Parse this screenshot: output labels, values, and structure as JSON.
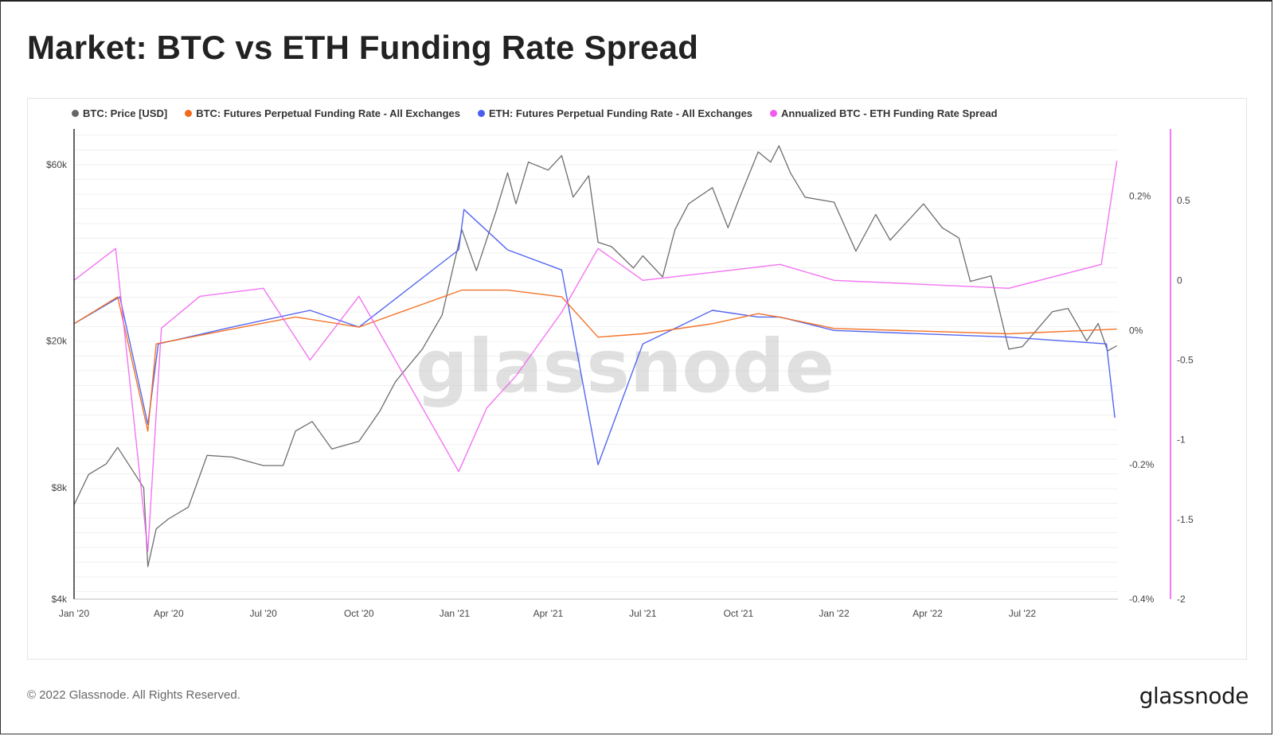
{
  "title": "Market: BTC vs ETH Funding Rate Spread",
  "footer": {
    "copyright": "© 2022 Glassnode. All Rights Reserved.",
    "logo": "glassnode"
  },
  "watermark": "glassnode",
  "legend": [
    {
      "label": "BTC: Price [USD]",
      "color": "#666666"
    },
    {
      "label": "BTC: Futures Perpetual Funding Rate - All Exchanges",
      "color": "#f26b1d"
    },
    {
      "label": "ETH: Futures Perpetual Funding Rate - All Exchanges",
      "color": "#4a5ff0"
    },
    {
      "label": "Annualized BTC - ETH Funding Rate Spread",
      "color": "#f15cf0"
    }
  ],
  "chart_data": {
    "type": "line",
    "x_axis": {
      "type": "time",
      "range": [
        "2020-01-01",
        "2022-10-01"
      ],
      "ticks": [
        {
          "date": "2020-01-01",
          "label": "Jan '20"
        },
        {
          "date": "2020-04-01",
          "label": "Apr '20"
        },
        {
          "date": "2020-07-01",
          "label": "Jul '20"
        },
        {
          "date": "2020-10-01",
          "label": "Oct '20"
        },
        {
          "date": "2021-01-01",
          "label": "Jan '21"
        },
        {
          "date": "2021-04-01",
          "label": "Apr '21"
        },
        {
          "date": "2021-07-01",
          "label": "Jul '21"
        },
        {
          "date": "2021-10-01",
          "label": "Oct '21"
        },
        {
          "date": "2022-01-01",
          "label": "Jan '22"
        },
        {
          "date": "2022-04-01",
          "label": "Apr '22"
        },
        {
          "date": "2022-07-01",
          "label": "Jul '22"
        }
      ]
    },
    "y_left": {
      "scale": "log",
      "range": [
        4000,
        75000
      ],
      "ticks": [
        {
          "value": 4000,
          "label": "$4k"
        },
        {
          "value": 8000,
          "label": "$8k"
        },
        {
          "value": 20000,
          "label": "$20k"
        },
        {
          "value": 60000,
          "label": "$60k"
        }
      ]
    },
    "y_right1": {
      "scale": "linear",
      "unit": "%",
      "range": [
        -0.4,
        0.3
      ],
      "ticks": [
        {
          "value": 0.2,
          "label": "0.2%"
        },
        {
          "value": 0,
          "label": "0%"
        },
        {
          "value": -0.2,
          "label": "-0.2%"
        },
        {
          "value": -0.4,
          "label": "-0.4%"
        }
      ]
    },
    "y_right2": {
      "scale": "linear",
      "range": [
        -2,
        0.95
      ],
      "ticks": [
        {
          "value": 0.5,
          "label": "0.5"
        },
        {
          "value": 0,
          "label": "0"
        },
        {
          "value": -0.5,
          "label": "-0.5"
        },
        {
          "value": -1,
          "label": "-1"
        },
        {
          "value": -1.5,
          "label": "-1.5"
        },
        {
          "value": -2,
          "label": "-2"
        }
      ]
    },
    "series": [
      {
        "name": "BTC: Price [USD]",
        "axis": "y_left",
        "color": "#666666",
        "points": [
          [
            "2020-01-01",
            7200
          ],
          [
            "2020-01-15",
            8700
          ],
          [
            "2020-02-01",
            9300
          ],
          [
            "2020-02-12",
            10300
          ],
          [
            "2020-03-01",
            8600
          ],
          [
            "2020-03-08",
            8000
          ],
          [
            "2020-03-12",
            4900
          ],
          [
            "2020-03-20",
            6200
          ],
          [
            "2020-04-01",
            6600
          ],
          [
            "2020-04-20",
            7100
          ],
          [
            "2020-05-08",
            9800
          ],
          [
            "2020-06-01",
            9700
          ],
          [
            "2020-07-01",
            9200
          ],
          [
            "2020-07-20",
            9200
          ],
          [
            "2020-08-01",
            11400
          ],
          [
            "2020-08-17",
            12100
          ],
          [
            "2020-09-05",
            10200
          ],
          [
            "2020-10-01",
            10700
          ],
          [
            "2020-10-21",
            12900
          ],
          [
            "2020-11-05",
            15500
          ],
          [
            "2020-12-01",
            19000
          ],
          [
            "2020-12-20",
            23500
          ],
          [
            "2021-01-08",
            40000
          ],
          [
            "2021-01-22",
            31000
          ],
          [
            "2021-02-10",
            45000
          ],
          [
            "2021-02-21",
            57000
          ],
          [
            "2021-03-01",
            47000
          ],
          [
            "2021-03-13",
            61000
          ],
          [
            "2021-04-01",
            58000
          ],
          [
            "2021-04-14",
            63500
          ],
          [
            "2021-04-25",
            49000
          ],
          [
            "2021-05-10",
            56000
          ],
          [
            "2021-05-19",
            37000
          ],
          [
            "2021-06-01",
            36000
          ],
          [
            "2021-06-22",
            31500
          ],
          [
            "2021-07-01",
            34000
          ],
          [
            "2021-07-20",
            29800
          ],
          [
            "2021-08-01",
            40000
          ],
          [
            "2021-08-14",
            47000
          ],
          [
            "2021-09-06",
            52000
          ],
          [
            "2021-09-21",
            40500
          ],
          [
            "2021-10-01",
            48000
          ],
          [
            "2021-10-20",
            65000
          ],
          [
            "2021-11-01",
            61000
          ],
          [
            "2021-11-09",
            67500
          ],
          [
            "2021-11-20",
            57000
          ],
          [
            "2021-12-04",
            49000
          ],
          [
            "2022-01-01",
            47500
          ],
          [
            "2022-01-22",
            35000
          ],
          [
            "2022-02-10",
            44000
          ],
          [
            "2022-02-24",
            37500
          ],
          [
            "2022-03-28",
            47000
          ],
          [
            "2022-04-15",
            40500
          ],
          [
            "2022-05-01",
            38000
          ],
          [
            "2022-05-12",
            29000
          ],
          [
            "2022-06-01",
            30000
          ],
          [
            "2022-06-18",
            19000
          ],
          [
            "2022-07-01",
            19300
          ],
          [
            "2022-07-30",
            24000
          ],
          [
            "2022-08-14",
            24500
          ],
          [
            "2022-09-01",
            20000
          ],
          [
            "2022-09-12",
            22300
          ],
          [
            "2022-09-21",
            18800
          ],
          [
            "2022-09-30",
            19400
          ]
        ]
      },
      {
        "name": "BTC: Futures Perpetual Funding Rate - All Exchanges",
        "axis": "y_right1",
        "color": "#f26b1d",
        "points": [
          [
            "2020-01-01",
            0.01
          ],
          [
            "2020-02-12",
            0.05
          ],
          [
            "2020-03-12",
            -0.15
          ],
          [
            "2020-03-20",
            -0.02
          ],
          [
            "2020-06-01",
            0.002
          ],
          [
            "2020-08-01",
            0.02
          ],
          [
            "2020-10-01",
            0.005
          ],
          [
            "2021-01-08",
            0.06
          ],
          [
            "2021-02-21",
            0.06
          ],
          [
            "2021-04-14",
            0.05
          ],
          [
            "2021-05-19",
            -0.01
          ],
          [
            "2021-07-01",
            -0.005
          ],
          [
            "2021-09-06",
            0.01
          ],
          [
            "2021-10-20",
            0.025
          ],
          [
            "2021-11-09",
            0.02
          ],
          [
            "2022-01-01",
            0.003
          ],
          [
            "2022-06-18",
            -0.005
          ],
          [
            "2022-09-30",
            0.002
          ]
        ]
      },
      {
        "name": "ETH: Futures Perpetual Funding Rate - All Exchanges",
        "axis": "y_right1",
        "color": "#4a5ff0",
        "points": [
          [
            "2020-01-01",
            0.01
          ],
          [
            "2020-02-14",
            0.05
          ],
          [
            "2020-03-12",
            -0.14
          ],
          [
            "2020-03-22",
            -0.02
          ],
          [
            "2020-06-01",
            0.005
          ],
          [
            "2020-08-15",
            0.03
          ],
          [
            "2020-10-01",
            0.005
          ],
          [
            "2021-01-05",
            0.12
          ],
          [
            "2021-01-10",
            0.18
          ],
          [
            "2021-02-21",
            0.12
          ],
          [
            "2021-04-14",
            0.09
          ],
          [
            "2021-05-19",
            -0.2
          ],
          [
            "2021-07-01",
            -0.02
          ],
          [
            "2021-09-06",
            0.03
          ],
          [
            "2021-10-20",
            0.02
          ],
          [
            "2021-11-10",
            0.02
          ],
          [
            "2022-01-01",
            0.0
          ],
          [
            "2022-06-18",
            -0.01
          ],
          [
            "2022-09-20",
            -0.02
          ],
          [
            "2022-09-28",
            -0.13
          ]
        ]
      },
      {
        "name": "Annualized BTC - ETH Funding Rate Spread",
        "axis": "y_right2",
        "color": "#f15cf0",
        "points": [
          [
            "2020-01-01",
            0.0
          ],
          [
            "2020-02-10",
            0.2
          ],
          [
            "2020-03-12",
            -1.7
          ],
          [
            "2020-03-25",
            -0.3
          ],
          [
            "2020-05-01",
            -0.1
          ],
          [
            "2020-07-01",
            -0.05
          ],
          [
            "2020-08-15",
            -0.5
          ],
          [
            "2020-10-01",
            -0.1
          ],
          [
            "2021-01-05",
            -1.2
          ],
          [
            "2021-02-01",
            -0.8
          ],
          [
            "2021-03-01",
            -0.6
          ],
          [
            "2021-04-14",
            -0.2
          ],
          [
            "2021-05-19",
            0.2
          ],
          [
            "2021-07-01",
            0.0
          ],
          [
            "2021-09-06",
            0.05
          ],
          [
            "2021-11-10",
            0.1
          ],
          [
            "2022-01-01",
            0.0
          ],
          [
            "2022-06-18",
            -0.05
          ],
          [
            "2022-09-15",
            0.1
          ],
          [
            "2022-09-30",
            0.75
          ]
        ]
      }
    ],
    "grid": true,
    "legend_position": "top-left"
  }
}
